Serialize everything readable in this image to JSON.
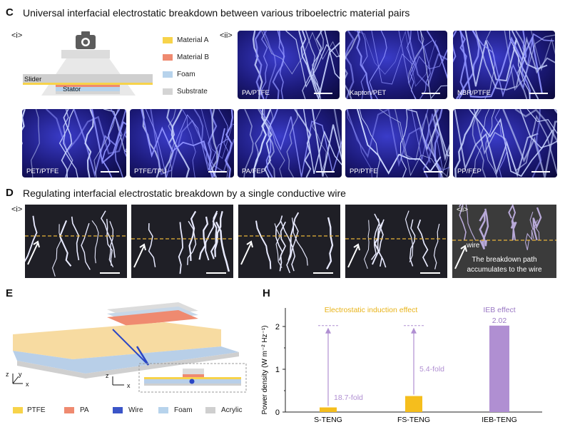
{
  "panel_c": {
    "letter": "C",
    "heading": "Universal interfacial electrostatic breakdown between various triboelectric material pairs",
    "sub_i": "<i>",
    "sub_ii": "<ii>",
    "schematic": {
      "slider": "Slider",
      "stator": "Stator",
      "camera_icon": "camera-icon"
    },
    "legend": [
      {
        "label": "Material A",
        "color": "#f7d34a"
      },
      {
        "label": "Material B",
        "color": "#ef8a70"
      },
      {
        "label": "Foam",
        "color": "#b7d3ec"
      },
      {
        "label": "Substrate",
        "color": "#d4d4d4"
      }
    ],
    "images": [
      "PA/PTFE",
      "Kapton/PET",
      "NBR/PTFE",
      "PET/PTFE",
      "PTFE/TPU",
      "PA/FEP",
      "PP/PTFE",
      "PP/FEP"
    ]
  },
  "panel_d": {
    "letter": "D",
    "heading": "Regulating interfacial electrostatic breakdown by a single conductive wire",
    "sub_i": "<i>",
    "sub_ii": "<ii>",
    "wire_label": "wire",
    "caption_line1": "The breakdown path",
    "caption_line2": "accumulates to the wire"
  },
  "panel_e": {
    "letter": "E",
    "axes": {
      "z": "z",
      "y": "y",
      "x": "x"
    },
    "legend": [
      {
        "label": "PTFE",
        "color": "#f7d34a"
      },
      {
        "label": "PA",
        "color": "#ef8a70"
      },
      {
        "label": "Wire",
        "color": "#3b55c8"
      },
      {
        "label": "Foam",
        "color": "#b7d3ec"
      },
      {
        "label": "Acrylic",
        "color": "#cfcfcf"
      }
    ]
  },
  "panel_h": {
    "letter": "H",
    "annotation_left": "Electrostatic induction effect",
    "annotation_right": "IEB effect",
    "fold_1": "18.7-fold",
    "fold_2": "5.4-fold",
    "value_label": "2.02",
    "chart_data": {
      "type": "bar",
      "categories": [
        "S-TENG",
        "FS-TENG",
        "IEB-TENG"
      ],
      "values": [
        0.108,
        0.374,
        2.02
      ],
      "colors": [
        "#f5be1d",
        "#f5be1d",
        "#b08fd2"
      ],
      "ylabel": "Power density (W m⁻² Hz⁻¹)",
      "ylim": [
        0,
        2.3
      ],
      "yticks": [
        "0",
        "1",
        "2"
      ],
      "grid": false
    }
  }
}
